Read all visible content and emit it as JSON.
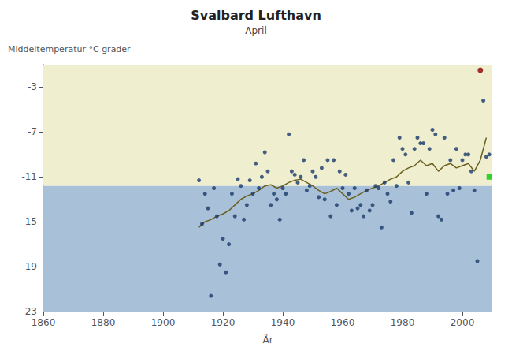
{
  "chart_data": {
    "type": "scatter",
    "title": "Svalbard Lufthavn",
    "subtitle": "April",
    "ylabel": "Middeltemperatur °C grader",
    "xlabel": "År",
    "xlim": [
      1860,
      2010
    ],
    "ylim": [
      -23.0,
      -1.0
    ],
    "xticks": [
      1860,
      1880,
      1900,
      1920,
      1940,
      1960,
      1980,
      2000
    ],
    "yticks": [
      -23.0,
      -19.0,
      -15.0,
      -11.0,
      -7.0,
      -3.0
    ],
    "grid": false,
    "bands": [
      {
        "from": -11.8,
        "to": -1.0,
        "color": "#efefd0"
      },
      {
        "from": -23.0,
        "to": -11.8,
        "color": "#a8c0d8"
      }
    ],
    "series": [
      {
        "type": "line",
        "color": "#6b6020",
        "x": [
          1912,
          1914,
          1916,
          1918,
          1920,
          1922,
          1924,
          1926,
          1928,
          1930,
          1932,
          1934,
          1936,
          1938,
          1940,
          1942,
          1944,
          1946,
          1948,
          1950,
          1952,
          1954,
          1956,
          1958,
          1960,
          1962,
          1964,
          1966,
          1968,
          1970,
          1972,
          1974,
          1976,
          1978,
          1980,
          1982,
          1984,
          1986,
          1988,
          1990,
          1992,
          1994,
          1996,
          1998,
          2000,
          2002,
          2004,
          2006,
          2008
        ],
        "values": [
          -15.5,
          -15.0,
          -14.8,
          -14.5,
          -14.3,
          -14.0,
          -13.5,
          -13.0,
          -12.7,
          -12.5,
          -12.2,
          -11.8,
          -11.7,
          -12.0,
          -11.8,
          -11.5,
          -11.3,
          -11.2,
          -11.5,
          -11.8,
          -12.2,
          -12.5,
          -12.3,
          -12.0,
          -12.5,
          -13.0,
          -12.8,
          -12.5,
          -12.2,
          -12.0,
          -11.8,
          -11.5,
          -11.2,
          -11.0,
          -10.5,
          -10.2,
          -10.0,
          -9.5,
          -10.0,
          -9.8,
          -10.5,
          -10.0,
          -9.8,
          -10.2,
          -10.0,
          -9.8,
          -10.5,
          -9.5,
          -7.5
        ]
      },
      {
        "type": "scatter",
        "color": "#1a3a6b",
        "marker": "circle",
        "x": [
          1912,
          1913,
          1914,
          1915,
          1916,
          1917,
          1918,
          1919,
          1920,
          1921,
          1922,
          1923,
          1924,
          1925,
          1926,
          1927,
          1928,
          1929,
          1930,
          1931,
          1932,
          1933,
          1934,
          1935,
          1936,
          1937,
          1938,
          1939,
          1940,
          1941,
          1942,
          1943,
          1944,
          1945,
          1946,
          1947,
          1948,
          1949,
          1950,
          1951,
          1952,
          1953,
          1954,
          1955,
          1956,
          1957,
          1958,
          1959,
          1960,
          1961,
          1962,
          1963,
          1964,
          1965,
          1966,
          1967,
          1968,
          1969,
          1970,
          1971,
          1972,
          1973,
          1974,
          1975,
          1976,
          1977,
          1978,
          1979,
          1980,
          1981,
          1982,
          1983,
          1984,
          1985,
          1986,
          1987,
          1988,
          1989,
          1990,
          1991,
          1992,
          1993,
          1994,
          1995,
          1996,
          1997,
          1998,
          1999,
          2000,
          2001,
          2002,
          2003,
          2004,
          2005,
          2007,
          2008,
          2009
        ],
        "values": [
          -11.3,
          -15.2,
          -12.5,
          -13.8,
          -21.6,
          -12.0,
          -14.5,
          -18.8,
          -16.5,
          -19.5,
          -17.0,
          -12.5,
          -14.5,
          -11.2,
          -11.8,
          -14.8,
          -13.5,
          -11.3,
          -12.5,
          -9.8,
          -12.0,
          -11.0,
          -8.8,
          -10.5,
          -13.5,
          -12.5,
          -13.0,
          -14.8,
          -12.0,
          -12.5,
          -7.2,
          -10.5,
          -10.8,
          -11.5,
          -11.0,
          -9.5,
          -12.2,
          -11.8,
          -10.5,
          -11.0,
          -12.8,
          -10.2,
          -13.0,
          -9.5,
          -14.5,
          -9.5,
          -13.5,
          -10.5,
          -12.0,
          -10.8,
          -12.5,
          -14.0,
          -12.0,
          -13.8,
          -13.5,
          -14.5,
          -12.2,
          -14.0,
          -13.5,
          -11.8,
          -12.0,
          -15.5,
          -11.5,
          -12.5,
          -13.2,
          -9.5,
          -11.8,
          -7.5,
          -8.5,
          -9.0,
          -11.5,
          -14.2,
          -8.5,
          -7.5,
          -8.0,
          -8.0,
          -12.5,
          -8.5,
          -6.8,
          -7.2,
          -14.5,
          -14.8,
          -7.5,
          -12.5,
          -9.5,
          -12.2,
          -8.5,
          -12.0,
          -9.5,
          -9.0,
          -9.0,
          -10.5,
          -12.2,
          -18.5,
          -4.2,
          -9.2,
          -9.0
        ]
      },
      {
        "type": "scatter",
        "color": "#8b0000",
        "marker": "circle",
        "x": [
          2006
        ],
        "values": [
          -1.5
        ]
      },
      {
        "type": "scatter",
        "color": "#00cc00",
        "marker": "square",
        "x": [
          2009
        ],
        "values": [
          -11.0
        ]
      }
    ]
  }
}
